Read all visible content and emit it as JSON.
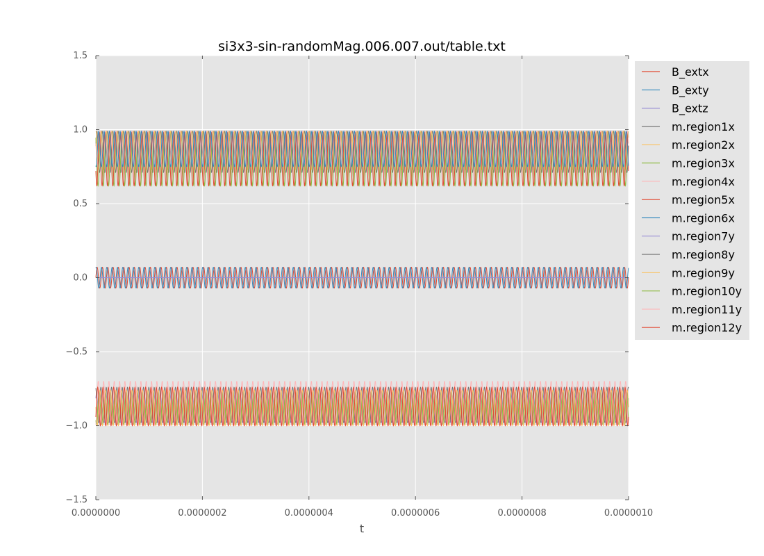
{
  "chart_data": {
    "type": "line",
    "title": "si3x3-sin-randomMag.006.007.out/table.txt",
    "xlabel": "t",
    "ylabel": "",
    "xlim": [
      0,
      1e-06
    ],
    "ylim": [
      -1.5,
      1.5
    ],
    "xticks": [
      {
        "value": 0,
        "label": "0.0000000"
      },
      {
        "value": 2e-07,
        "label": "0.0000002"
      },
      {
        "value": 4e-07,
        "label": "0.0000004"
      },
      {
        "value": 6e-07,
        "label": "0.0000006"
      },
      {
        "value": 8e-07,
        "label": "0.0000008"
      },
      {
        "value": 1e-06,
        "label": "0.0000010"
      }
    ],
    "yticks": [
      {
        "value": 1.5,
        "label": "1.5"
      },
      {
        "value": 1.0,
        "label": "1.0"
      },
      {
        "value": 0.5,
        "label": "0.5"
      },
      {
        "value": 0.0,
        "label": "0.0"
      },
      {
        "value": -0.5,
        "label": "−0.5"
      },
      {
        "value": -1.0,
        "label": "−1.0"
      },
      {
        "value": -1.5,
        "label": "−1.5"
      }
    ],
    "grid": true,
    "background": "#e5e5e5",
    "legend_position": "outside-right",
    "oscillation_periods": 100,
    "series": [
      {
        "name": "B_extx",
        "color": "#e24a33",
        "center": 0.0,
        "amplitude": 0.07,
        "phase": 0.0
      },
      {
        "name": "B_exty",
        "color": "#348abd",
        "center": 0.0,
        "amplitude": 0.07,
        "phase": 1.2
      },
      {
        "name": "B_extz",
        "color": "#988ed5",
        "center": 0.0,
        "amplitude": 0.0,
        "phase": 0.0
      },
      {
        "name": "m.region1x",
        "color": "#777777",
        "center": 0.85,
        "amplitude": 0.14,
        "phase": 0.3
      },
      {
        "name": "m.region2x",
        "color": "#fbc15e",
        "center": 0.86,
        "amplitude": 0.13,
        "phase": 1.5
      },
      {
        "name": "m.region3x",
        "color": "#8eba42",
        "center": 0.8,
        "amplitude": 0.18,
        "phase": 2.2
      },
      {
        "name": "m.region4x",
        "color": "#ffb5b8",
        "center": 0.88,
        "amplitude": 0.11,
        "phase": 2.9
      },
      {
        "name": "m.region5x",
        "color": "#e24a33",
        "center": 0.8,
        "amplitude": 0.18,
        "phase": 3.6
      },
      {
        "name": "m.region6x",
        "color": "#348abd",
        "center": 0.87,
        "amplitude": 0.12,
        "phase": 4.4
      },
      {
        "name": "m.region7y",
        "color": "#988ed5",
        "center": -0.88,
        "amplitude": 0.1,
        "phase": 0.7
      },
      {
        "name": "m.region8y",
        "color": "#777777",
        "center": -0.86,
        "amplitude": 0.12,
        "phase": 1.9
      },
      {
        "name": "m.region9y",
        "color": "#fbc15e",
        "center": -0.88,
        "amplitude": 0.12,
        "phase": 3.1
      },
      {
        "name": "m.region10y",
        "color": "#8eba42",
        "center": -0.88,
        "amplitude": 0.11,
        "phase": 4.0
      },
      {
        "name": "m.region11y",
        "color": "#ffb5b8",
        "center": -0.85,
        "amplitude": 0.15,
        "phase": 5.0
      },
      {
        "name": "m.region12y",
        "color": "#e24a33",
        "center": -0.87,
        "amplitude": 0.13,
        "phase": 5.7
      }
    ]
  }
}
